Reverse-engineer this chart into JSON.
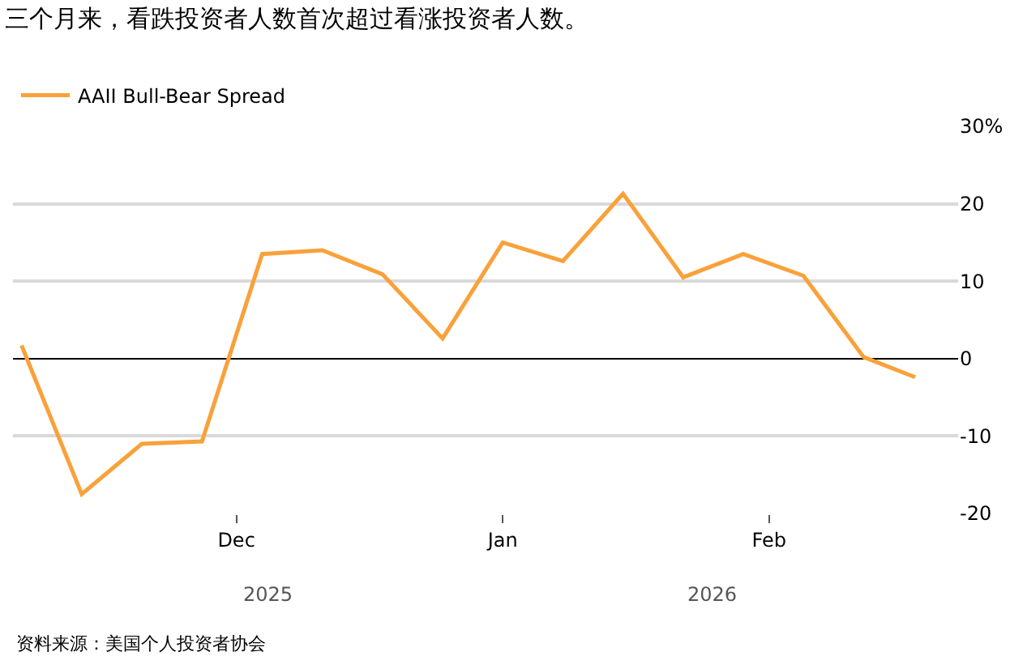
{
  "chart_data": {
    "type": "line",
    "title": "三个月来，看跌投资者人数首次超过看涨投资者人数。",
    "x": [
      "2025-11-06",
      "2025-11-13",
      "2025-11-20",
      "2025-11-27",
      "2025-12-04",
      "2025-12-11",
      "2025-12-18",
      "2025-12-25",
      "2026-01-01",
      "2026-01-08",
      "2026-01-15",
      "2026-01-22",
      "2026-01-29",
      "2026-02-05",
      "2026-02-12",
      "2026-02-18"
    ],
    "series": [
      {
        "name": "AAII Bull-Bear Spread",
        "color": "#f9a13a",
        "values": [
          1.7,
          -17.5,
          -11.0,
          -10.7,
          13.5,
          14.0,
          10.9,
          2.6,
          15.0,
          12.6,
          21.3,
          10.5,
          13.5,
          10.7,
          0.2,
          -2.4
        ]
      }
    ],
    "xlim": [
      "2025-11-05",
      "2026-02-23"
    ],
    "xticks": [
      {
        "value": "2025-12-01",
        "label": "Dec"
      },
      {
        "value": "2026-01-01",
        "label": "Jan"
      },
      {
        "value": "2026-02-01",
        "label": "Feb"
      }
    ],
    "ylim": [
      -20,
      30
    ],
    "yticks": [
      -20,
      -10,
      0,
      10,
      20,
      {
        "value": 30,
        "label": "30%"
      }
    ],
    "grid": "y",
    "legend": "top left",
    "marker": "none",
    "line_style": "solid",
    "annotations": [
      "2025",
      "2026",
      "资料来源：美国个人投资者协会"
    ]
  }
}
